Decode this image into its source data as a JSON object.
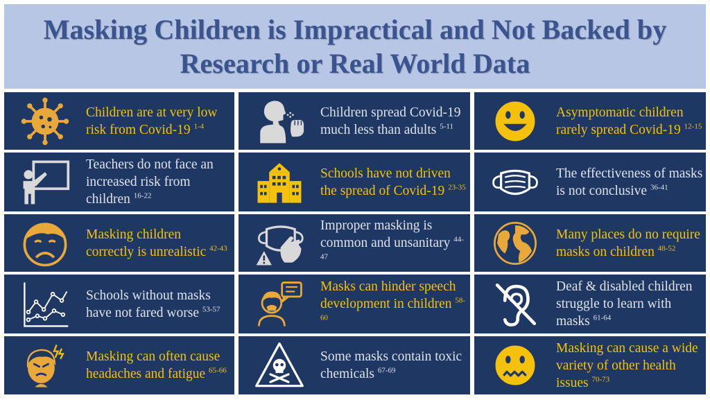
{
  "title": "Masking Children is Impractical and Not Backed by Research or Real World Data",
  "colors": {
    "tile_bg": "#1f3763",
    "header_bg": "#b7c6e4",
    "title": "#3a5490",
    "gold": "#f4c20d",
    "light": "#dfe3ea"
  },
  "tiles": [
    {
      "icon": "virus-icon",
      "text": "Children are at very low risk from Covid-19",
      "ref": "1-4",
      "style": "gold"
    },
    {
      "icon": "coughing-person-icon",
      "text": "Children spread Covid-19 much less than adults",
      "ref": "5-11",
      "style": "light"
    },
    {
      "icon": "smiley-face-icon",
      "text": "Asymptomatic children rarely spread Covid-19",
      "ref": "12-15",
      "style": "gold"
    },
    {
      "icon": "teacher-board-icon",
      "text": "Teachers do not face an increased risk from children",
      "ref": "16-22",
      "style": "light"
    },
    {
      "icon": "school-building-icon",
      "text": "Schools have not driven the spread of Covid-19",
      "ref": "23-35",
      "style": "gold"
    },
    {
      "icon": "face-mask-icon",
      "text": "The effectiveness of masks is not conclusive",
      "ref": "36-41",
      "style": "light"
    },
    {
      "icon": "sad-child-icon",
      "text": "Masking children correctly  is unrealistic",
      "ref": "42-43",
      "style": "gold"
    },
    {
      "icon": "mask-warning-icon",
      "text": "Improper masking is common and unsanitary",
      "ref": "44-47",
      "style": "light"
    },
    {
      "icon": "globe-icon",
      "text": "Many places do no require masks on children",
      "ref": "48-52",
      "style": "gold"
    },
    {
      "icon": "line-chart-icon",
      "text": "Schools without masks have not fared worse",
      "ref": "53-57",
      "style": "light"
    },
    {
      "icon": "child-speech-icon",
      "text": "Masks can hinder speech development in children",
      "ref": "58-60",
      "style": "gold"
    },
    {
      "icon": "deaf-ear-icon",
      "text": "Deaf & disabled children struggle to learn with masks",
      "ref": "61-64",
      "style": "light"
    },
    {
      "icon": "headache-icon",
      "text": "Masking can often cause headaches and fatigue",
      "ref": "65-66",
      "style": "gold"
    },
    {
      "icon": "toxic-skull-icon",
      "text": "Some masks contain toxic chemicals",
      "ref": "67-69",
      "style": "light"
    },
    {
      "icon": "sick-face-icon",
      "text": "Masking can cause a wide variety of other health issues",
      "ref": "70-73",
      "style": "gold"
    }
  ]
}
